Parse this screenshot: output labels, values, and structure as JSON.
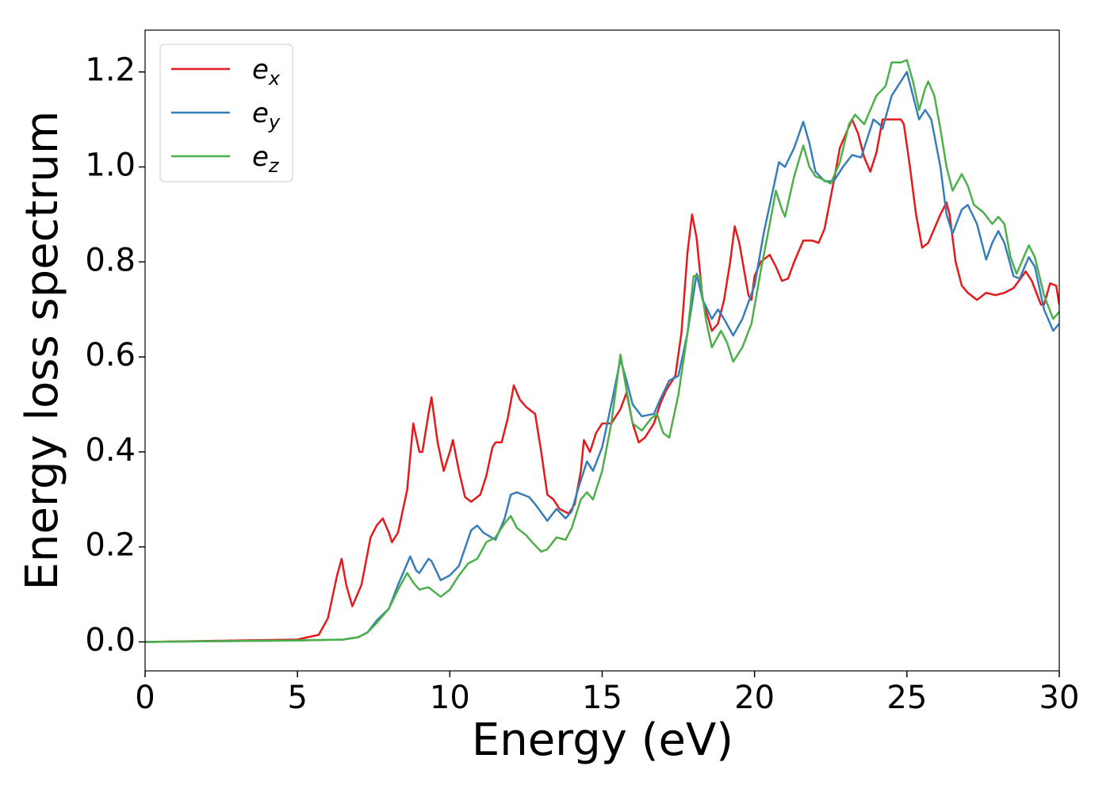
{
  "chart_data": {
    "type": "line",
    "xlabel": "Energy (eV)",
    "ylabel": "Energy loss spectrum",
    "xlim": [
      0,
      30
    ],
    "xticks": [
      0,
      5,
      10,
      15,
      20,
      25,
      30
    ],
    "ylim": [
      -0.061,
      1.288
    ],
    "yticks": [
      {
        "value": 0,
        "label": "0.0"
      },
      0.2,
      0.4,
      0.6,
      0.8,
      {
        "value": 1,
        "label": "1.0"
      },
      1.2
    ],
    "legend": "upper left",
    "series": [
      {
        "name": "ex",
        "color": "#e41a1c",
        "x": [
          0,
          5,
          5.7,
          6.0,
          6.3,
          6.45,
          6.6,
          6.8,
          7.1,
          7.4,
          7.6,
          7.8,
          8.0,
          8.1,
          8.3,
          8.6,
          8.8,
          9.0,
          9.1,
          9.3,
          9.4,
          9.6,
          9.8,
          10.0,
          10.1,
          10.3,
          10.5,
          10.7,
          11.0,
          11.2,
          11.4,
          11.5,
          11.7,
          11.9,
          12.1,
          12.3,
          12.5,
          12.8,
          13.0,
          13.2,
          13.4,
          13.6,
          13.9,
          14.1,
          14.3,
          14.4,
          14.6,
          14.8,
          15.0,
          15.3,
          15.6,
          15.8,
          16.0,
          16.2,
          16.4,
          16.7,
          16.9,
          17.1,
          17.4,
          17.6,
          17.8,
          17.95,
          18.1,
          18.3,
          18.6,
          18.8,
          19.0,
          19.2,
          19.35,
          19.5,
          19.8,
          19.9,
          20.0,
          20.2,
          20.5,
          20.7,
          20.9,
          21.1,
          21.3,
          21.6,
          21.9,
          22.1,
          22.3,
          22.6,
          22.8,
          23.0,
          23.2,
          23.4,
          23.6,
          23.8,
          24.0,
          24.2,
          24.5,
          24.8,
          24.9,
          25.1,
          25.3,
          25.5,
          25.7,
          25.9,
          26.1,
          26.3,
          26.4,
          26.6,
          26.8,
          27.0,
          27.3,
          27.6,
          27.9,
          28.2,
          28.5,
          28.9,
          29.1,
          29.4,
          29.5,
          29.7,
          29.9,
          30
        ],
        "values": [
          0,
          0.005,
          0.015,
          0.05,
          0.14,
          0.175,
          0.12,
          0.075,
          0.12,
          0.22,
          0.245,
          0.26,
          0.23,
          0.21,
          0.23,
          0.32,
          0.46,
          0.4,
          0.4,
          0.48,
          0.515,
          0.42,
          0.36,
          0.4,
          0.425,
          0.36,
          0.305,
          0.295,
          0.31,
          0.35,
          0.41,
          0.42,
          0.42,
          0.47,
          0.54,
          0.51,
          0.495,
          0.48,
          0.4,
          0.31,
          0.3,
          0.28,
          0.27,
          0.29,
          0.36,
          0.425,
          0.4,
          0.44,
          0.46,
          0.46,
          0.49,
          0.525,
          0.46,
          0.42,
          0.43,
          0.46,
          0.5,
          0.53,
          0.56,
          0.65,
          0.82,
          0.9,
          0.85,
          0.72,
          0.655,
          0.67,
          0.72,
          0.8,
          0.875,
          0.84,
          0.73,
          0.72,
          0.77,
          0.8,
          0.815,
          0.79,
          0.76,
          0.765,
          0.8,
          0.845,
          0.845,
          0.84,
          0.87,
          0.97,
          1.04,
          1.07,
          1.1,
          1.07,
          1.02,
          0.99,
          1.03,
          1.1,
          1.1,
          1.1,
          1.09,
          1.0,
          0.9,
          0.83,
          0.84,
          0.87,
          0.9,
          0.925,
          0.9,
          0.8,
          0.75,
          0.735,
          0.72,
          0.735,
          0.73,
          0.735,
          0.745,
          0.78,
          0.76,
          0.71,
          0.71,
          0.755,
          0.75,
          0.71
        ]
      },
      {
        "name": "ey",
        "color": "#377eb8",
        "x": [
          0,
          5,
          6.5,
          7.0,
          7.3,
          7.6,
          8.0,
          8.3,
          8.7,
          8.9,
          9.0,
          9.3,
          9.4,
          9.7,
          10.0,
          10.3,
          10.7,
          10.9,
          11.1,
          11.5,
          11.8,
          12.0,
          12.2,
          12.6,
          12.8,
          13.2,
          13.5,
          13.8,
          14.0,
          14.2,
          14.5,
          14.7,
          15.0,
          15.3,
          15.6,
          15.8,
          16.0,
          16.3,
          16.7,
          16.9,
          17.2,
          17.5,
          17.8,
          18.1,
          18.3,
          18.6,
          18.8,
          19.0,
          19.3,
          19.6,
          20.0,
          20.3,
          20.6,
          20.8,
          21.0,
          21.3,
          21.6,
          21.8,
          22.0,
          22.3,
          22.6,
          22.9,
          23.2,
          23.5,
          23.9,
          24.1,
          24.2,
          24.5,
          24.8,
          25.0,
          25.2,
          25.4,
          25.6,
          25.8,
          26.1,
          26.3,
          26.5,
          26.8,
          27.0,
          27.3,
          27.5,
          27.6,
          27.8,
          28.0,
          28.2,
          28.5,
          28.7,
          29.0,
          29.2,
          29.5,
          29.8,
          30
        ],
        "values": [
          0,
          0.003,
          0.005,
          0.01,
          0.02,
          0.045,
          0.07,
          0.12,
          0.18,
          0.15,
          0.145,
          0.175,
          0.17,
          0.13,
          0.14,
          0.16,
          0.235,
          0.245,
          0.23,
          0.215,
          0.26,
          0.31,
          0.315,
          0.305,
          0.29,
          0.255,
          0.28,
          0.26,
          0.275,
          0.32,
          0.38,
          0.36,
          0.41,
          0.5,
          0.595,
          0.55,
          0.5,
          0.475,
          0.48,
          0.51,
          0.55,
          0.56,
          0.65,
          0.775,
          0.72,
          0.68,
          0.7,
          0.68,
          0.645,
          0.68,
          0.75,
          0.86,
          0.95,
          1.01,
          1.0,
          1.04,
          1.095,
          1.05,
          0.99,
          0.97,
          0.97,
          1.0,
          1.025,
          1.02,
          1.1,
          1.09,
          1.08,
          1.15,
          1.18,
          1.2,
          1.15,
          1.1,
          1.12,
          1.1,
          1.0,
          0.9,
          0.86,
          0.91,
          0.92,
          0.88,
          0.83,
          0.805,
          0.84,
          0.865,
          0.84,
          0.77,
          0.765,
          0.81,
          0.79,
          0.7,
          0.655,
          0.67
        ]
      },
      {
        "name": "ez",
        "color": "#4daf4a",
        "x": [
          0,
          5,
          6.5,
          7.0,
          7.3,
          7.6,
          8.0,
          8.3,
          8.6,
          8.8,
          9.0,
          9.3,
          9.5,
          9.7,
          10.0,
          10.3,
          10.6,
          10.9,
          11.2,
          11.5,
          11.8,
          12.0,
          12.2,
          12.5,
          12.7,
          13.0,
          13.2,
          13.5,
          13.8,
          14.0,
          14.3,
          14.5,
          14.7,
          15.0,
          15.3,
          15.6,
          15.8,
          16.0,
          16.3,
          16.6,
          16.8,
          17.0,
          17.2,
          17.5,
          17.8,
          18.0,
          18.2,
          18.4,
          18.6,
          18.9,
          19.1,
          19.3,
          19.6,
          19.9,
          20.2,
          20.5,
          20.7,
          20.9,
          21.0,
          21.3,
          21.6,
          21.8,
          22.0,
          22.2,
          22.5,
          22.8,
          23.1,
          23.3,
          23.6,
          23.8,
          24.0,
          24.3,
          24.5,
          24.8,
          25.0,
          25.2,
          25.4,
          25.6,
          25.7,
          25.9,
          26.1,
          26.3,
          26.5,
          26.8,
          27.0,
          27.2,
          27.5,
          27.8,
          28.0,
          28.2,
          28.4,
          28.6,
          29.0,
          29.2,
          29.5,
          29.8,
          30
        ],
        "values": [
          0,
          0.003,
          0.005,
          0.01,
          0.02,
          0.04,
          0.07,
          0.11,
          0.145,
          0.125,
          0.11,
          0.115,
          0.105,
          0.095,
          0.11,
          0.14,
          0.165,
          0.175,
          0.21,
          0.22,
          0.25,
          0.265,
          0.24,
          0.225,
          0.21,
          0.19,
          0.195,
          0.22,
          0.215,
          0.24,
          0.3,
          0.315,
          0.3,
          0.36,
          0.46,
          0.605,
          0.53,
          0.46,
          0.445,
          0.47,
          0.48,
          0.44,
          0.43,
          0.52,
          0.65,
          0.77,
          0.77,
          0.68,
          0.62,
          0.655,
          0.63,
          0.59,
          0.62,
          0.67,
          0.78,
          0.88,
          0.95,
          0.91,
          0.895,
          0.98,
          1.045,
          1.0,
          0.98,
          0.975,
          0.965,
          1.01,
          1.09,
          1.11,
          1.09,
          1.12,
          1.15,
          1.17,
          1.22,
          1.22,
          1.225,
          1.18,
          1.12,
          1.165,
          1.18,
          1.15,
          1.08,
          1.0,
          0.95,
          0.985,
          0.96,
          0.92,
          0.905,
          0.88,
          0.895,
          0.88,
          0.81,
          0.775,
          0.835,
          0.81,
          0.73,
          0.68,
          0.695
        ]
      }
    ]
  }
}
